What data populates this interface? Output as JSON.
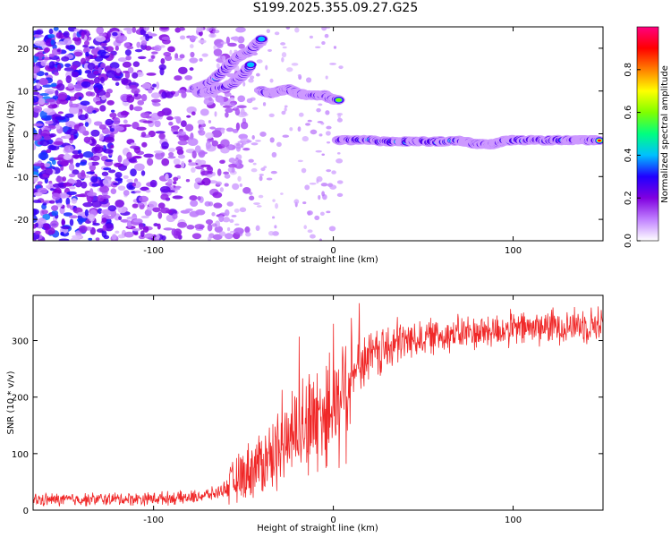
{
  "title": "S199.2025.355.09.27.G25",
  "chart_data": [
    {
      "type": "heatmap",
      "name": "spectrogram",
      "xlabel": "Height of straight line (km)",
      "ylabel": "Frequency (Hz)",
      "xlim": [
        -167,
        150
      ],
      "ylim": [
        -25,
        25
      ],
      "xticks": [
        -100,
        0,
        100
      ],
      "yticks": [
        -20,
        -10,
        0,
        10,
        20
      ],
      "colorbar": {
        "label": "Normalized spectral amplitude",
        "range": [
          0,
          1
        ],
        "ticks": [
          0.0,
          0.2,
          0.4,
          0.6,
          0.8
        ],
        "colors": [
          "#ffffff",
          "#c080ff",
          "#8000e0",
          "#2000ff",
          "#00c0ff",
          "#00ff80",
          "#80ff00",
          "#ffff00",
          "#ff8000",
          "#ff0000",
          "#ff0080"
        ]
      },
      "tracks": [
        {
          "x": [
            -77,
            -73,
            -68,
            -63,
            -58,
            -53,
            -48,
            -44,
            -40
          ],
          "y": [
            10.5,
            11,
            12,
            14,
            16,
            18,
            19,
            20.5,
            22
          ],
          "amp": 0.5
        },
        {
          "x": [
            -75,
            -70,
            -65,
            -60,
            -55,
            -50,
            -46
          ],
          "y": [
            9.5,
            10,
            10.5,
            11,
            12,
            14,
            16
          ],
          "amp": 0.45
        },
        {
          "x": [
            -40,
            -35,
            -30,
            -25,
            -20,
            -15,
            -10,
            -5,
            0,
            3
          ],
          "y": [
            10,
            9.5,
            10,
            10.5,
            9.5,
            9,
            9,
            9,
            8,
            8
          ],
          "amp": 0.85
        },
        {
          "x": [
            3,
            10,
            20,
            30,
            40,
            50,
            60,
            70,
            75,
            80,
            85,
            90,
            95,
            100,
            110,
            120,
            130,
            140,
            148
          ],
          "y": [
            -1.5,
            -1.5,
            -1.5,
            -1.8,
            -1.8,
            -1.8,
            -1.8,
            -1.6,
            -2,
            -2.4,
            -2.4,
            -2.4,
            -1.6,
            -1.5,
            -1.5,
            -1.5,
            -1.5,
            -1.5,
            -1.5
          ],
          "amp": 1.0
        }
      ],
      "noise_region": {
        "x": [
          -167,
          -70
        ],
        "y": [
          -25,
          25
        ]
      }
    },
    {
      "type": "line",
      "name": "snr",
      "xlabel": "Height of straight line (km)",
      "ylabel": "SNR (10 * v/v)",
      "xlim": [
        -167,
        150
      ],
      "ylim": [
        0,
        380
      ],
      "xticks": [
        -100,
        0,
        100
      ],
      "yticks": [
        0,
        100,
        200,
        300
      ],
      "color": "#f02828",
      "series": [
        {
          "name": "SNR",
          "x": [
            -167,
            -140,
            -110,
            -80,
            -65,
            -55,
            -45,
            -35,
            -25,
            -15,
            -8,
            0,
            5,
            10,
            15,
            20,
            30,
            40,
            60,
            80,
            100,
            120,
            150
          ],
          "values": [
            18,
            19,
            20,
            22,
            30,
            50,
            75,
            95,
            125,
            150,
            165,
            185,
            210,
            240,
            260,
            270,
            285,
            300,
            310,
            315,
            320,
            325,
            330
          ]
        }
      ]
    }
  ]
}
